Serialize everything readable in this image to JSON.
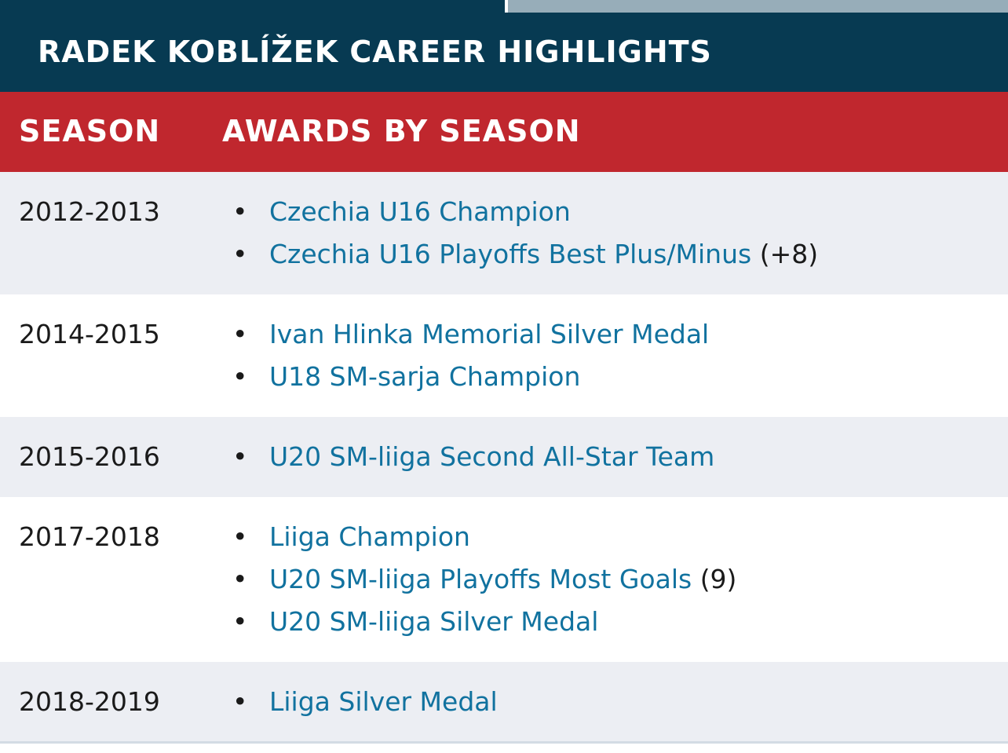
{
  "table": {
    "title": "RADEK KOBLÍŽEK CAREER HIGHLIGHTS",
    "headers": {
      "season": "SEASON",
      "awards": "AWARDS BY SEASON"
    },
    "rows": [
      {
        "season": "2012-2013",
        "awards": [
          {
            "name": "Czechia U16 Champion",
            "note": ""
          },
          {
            "name": "Czechia U16 Playoffs Best Plus/Minus",
            "note": "(+8)"
          }
        ]
      },
      {
        "season": "2014-2015",
        "awards": [
          {
            "name": "Ivan Hlinka Memorial Silver Medal",
            "note": ""
          },
          {
            "name": "U18 SM-sarja Champion",
            "note": ""
          }
        ]
      },
      {
        "season": "2015-2016",
        "awards": [
          {
            "name": "U20 SM-liiga Second All-Star Team",
            "note": ""
          }
        ]
      },
      {
        "season": "2017-2018",
        "awards": [
          {
            "name": "Liiga Champion",
            "note": ""
          },
          {
            "name": "U20 SM-liiga Playoffs Most Goals",
            "note": "(9)"
          },
          {
            "name": "U20 SM-liiga Silver Medal",
            "note": ""
          }
        ]
      },
      {
        "season": "2018-2019",
        "awards": [
          {
            "name": "Liiga Silver Medal",
            "note": ""
          }
        ]
      }
    ]
  },
  "colors": {
    "title_bg": "#073a52",
    "header_bg": "#c0272e",
    "link": "#11729f",
    "row_shaded": "#eceef3",
    "tab_inactive": "#97adb9"
  }
}
